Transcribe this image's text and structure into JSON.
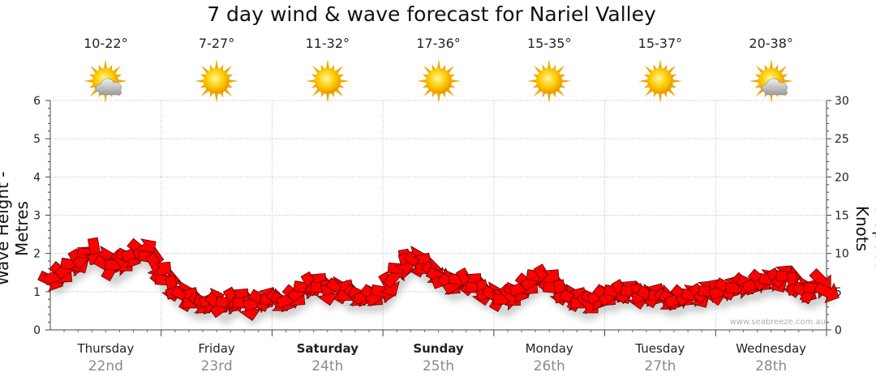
{
  "title": "7 day wind & wave forecast for Nariel Valley",
  "left_axis_label": "Wave Height - Metres",
  "right_axis_label": "Wind Speed - Knots",
  "watermark": "www.seabreeze.com.au",
  "days": [
    {
      "name": "Thursday",
      "date": "22nd",
      "temp": "10-22°",
      "icon": "partly-cloudy-icon",
      "bold": false
    },
    {
      "name": "Friday",
      "date": "23rd",
      "temp": "7-27°",
      "icon": "sunny-icon",
      "bold": false
    },
    {
      "name": "Saturday",
      "date": "24th",
      "temp": "11-32°",
      "icon": "sunny-icon",
      "bold": true
    },
    {
      "name": "Sunday",
      "date": "25th",
      "temp": "17-36°",
      "icon": "sunny-icon",
      "bold": true
    },
    {
      "name": "Monday",
      "date": "26th",
      "temp": "15-35°",
      "icon": "sunny-icon",
      "bold": false
    },
    {
      "name": "Tuesday",
      "date": "27th",
      "temp": "15-37°",
      "icon": "sunny-icon",
      "bold": false
    },
    {
      "name": "Wednesday",
      "date": "28th",
      "temp": "20-38°",
      "icon": "partly-cloudy-icon",
      "bold": false
    }
  ],
  "chart_data": {
    "type": "area",
    "title": "7 day wind & wave forecast for Nariel Valley",
    "ylabel_left": "Wave Height - Metres",
    "ylabel_right": "Wind Speed - Knots",
    "ylim_left": [
      0,
      6
    ],
    "ylim_right": [
      0,
      30
    ],
    "yticks_left": [
      "0",
      "1",
      "2",
      "3",
      "4",
      "5",
      "6"
    ],
    "yticks_right": [
      "0",
      "5",
      "10",
      "15",
      "20",
      "25",
      "30"
    ],
    "grid": true,
    "series": [
      {
        "kind": "wind-arrows",
        "color": "#ff0000",
        "x_days": [
          0,
          0.05,
          0.1,
          0.15,
          0.2,
          0.25,
          0.3,
          0.35,
          0.4,
          0.45,
          0.5,
          0.55,
          0.6,
          0.65,
          0.7,
          0.75,
          0.8,
          0.85,
          0.9,
          0.95,
          1.0,
          1.05,
          1.1,
          1.15,
          1.2,
          1.25,
          1.3,
          1.35,
          1.4,
          1.45,
          1.5,
          1.55,
          1.6,
          1.65,
          1.7,
          1.75,
          1.8,
          1.85,
          1.9,
          1.95,
          2.0,
          2.05,
          2.1,
          2.15,
          2.2,
          2.25,
          2.3,
          2.35,
          2.4,
          2.45,
          2.5,
          2.55,
          2.6,
          2.65,
          2.7,
          2.75,
          2.8,
          2.85,
          2.9,
          2.95,
          3.0,
          3.05,
          3.1,
          3.15,
          3.2,
          3.25,
          3.3,
          3.35,
          3.4,
          3.45,
          3.5,
          3.55,
          3.6,
          3.65,
          3.7,
          3.75,
          3.8,
          3.85,
          3.9,
          3.95,
          4.0,
          4.05,
          4.1,
          4.15,
          4.2,
          4.25,
          4.3,
          4.35,
          4.4,
          4.45,
          4.5,
          4.55,
          4.6,
          4.65,
          4.7,
          4.75,
          4.8,
          4.85,
          4.9,
          4.95,
          5.0,
          5.05,
          5.1,
          5.15,
          5.2,
          5.25,
          5.3,
          5.35,
          5.4,
          5.45,
          5.5,
          5.55,
          5.6,
          5.65,
          5.7,
          5.75,
          5.8,
          5.85,
          5.9,
          5.95,
          6.0,
          6.05,
          6.1,
          6.15,
          6.2,
          6.25,
          6.3,
          6.35,
          6.4,
          6.45,
          6.5,
          6.55,
          6.6,
          6.65,
          6.7,
          6.75,
          6.8,
          6.85,
          6.9,
          6.95,
          7.0
        ],
        "wind_knots": [
          6.5,
          7,
          7.5,
          8,
          8.5,
          9,
          9.5,
          10,
          10.5,
          9.5,
          8.5,
          8,
          8.5,
          9,
          9.5,
          10,
          10.5,
          10.5,
          9.5,
          8.5,
          7.5,
          6.5,
          5.5,
          5,
          4.5,
          4,
          3.5,
          3.5,
          3.5,
          4,
          3.5,
          3,
          3.5,
          4,
          4,
          3.5,
          3,
          3.5,
          4,
          4,
          4,
          3.8,
          3.8,
          4,
          4.5,
          5,
          5.5,
          6,
          6,
          5.5,
          5,
          5.5,
          5.5,
          5,
          4.5,
          4.5,
          4.5,
          4.5,
          4.5,
          4.5,
          5,
          6,
          7,
          8,
          9,
          9.5,
          9,
          8.5,
          8,
          7.5,
          7,
          6.5,
          6,
          6,
          6.5,
          6.5,
          6,
          5.5,
          5,
          4.8,
          4.5,
          4,
          4,
          4.5,
          5,
          5.5,
          6,
          6.5,
          7,
          7,
          6.5,
          5.5,
          5,
          4.5,
          4,
          4,
          3.5,
          3.5,
          4,
          4.5,
          4.5,
          4.5,
          5,
          5,
          5,
          5,
          4.5,
          4.5,
          4.5,
          4.5,
          4.5,
          4,
          4,
          4,
          4.5,
          4.5,
          4.5,
          4.5,
          5,
          5,
          5,
          5,
          5.5,
          5.5,
          5.5,
          6,
          6,
          6,
          6.5,
          6.5,
          6.5,
          6.5,
          7,
          7,
          6,
          5.5,
          5,
          5,
          5.5,
          6.5,
          5
        ]
      }
    ]
  }
}
